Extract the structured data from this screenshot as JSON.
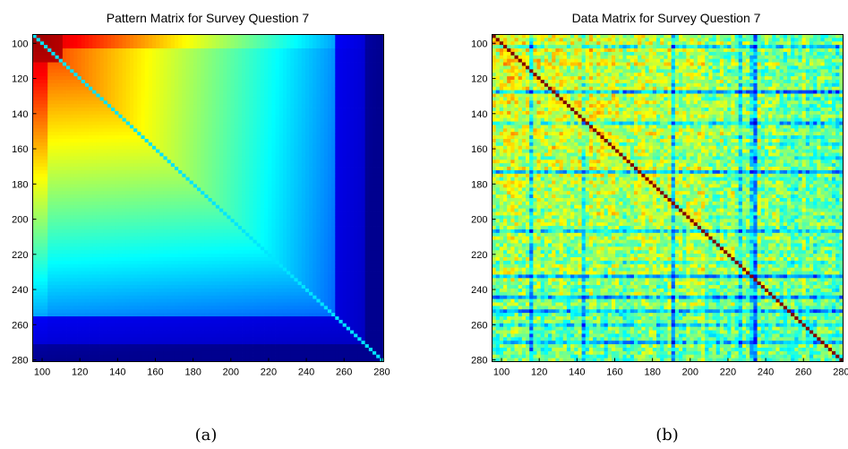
{
  "chart_data": [
    {
      "id": "a",
      "type": "heatmap",
      "title": "Pattern Matrix for Survey Question 7",
      "xlabel": "",
      "ylabel": "",
      "xlim": [
        95,
        281
      ],
      "ylim": [
        95,
        281
      ],
      "x_ticks": [
        "100",
        "120",
        "140",
        "160",
        "180",
        "200",
        "220",
        "240",
        "260",
        "280"
      ],
      "y_ticks": [
        "100",
        "120",
        "140",
        "160",
        "180",
        "200",
        "220",
        "240",
        "260",
        "280"
      ],
      "colormap": "jet",
      "colormap_stops": [
        "#00008f",
        "#0000ff",
        "#00ffff",
        "#ffff00",
        "#ff0000",
        "#800000"
      ],
      "pattern": "smooth",
      "diagonal_value": 0.38,
      "caption": "(a)"
    },
    {
      "id": "b",
      "type": "heatmap",
      "title": "Data Matrix for Survey Question 7",
      "xlabel": "",
      "ylabel": "",
      "xlim": [
        95,
        281
      ],
      "ylim": [
        95,
        281
      ],
      "x_ticks": [
        "100",
        "120",
        "140",
        "160",
        "180",
        "200",
        "220",
        "240",
        "260",
        "280"
      ],
      "y_ticks": [
        "100",
        "120",
        "140",
        "160",
        "180",
        "200",
        "220",
        "240",
        "260",
        "280"
      ],
      "colormap": "jet",
      "colormap_stops": [
        "#00008f",
        "#0000ff",
        "#00ffff",
        "#ffff00",
        "#ff0000",
        "#800000"
      ],
      "pattern": "noisy",
      "diagonal_value": 1.0,
      "caption": "(b)"
    }
  ]
}
